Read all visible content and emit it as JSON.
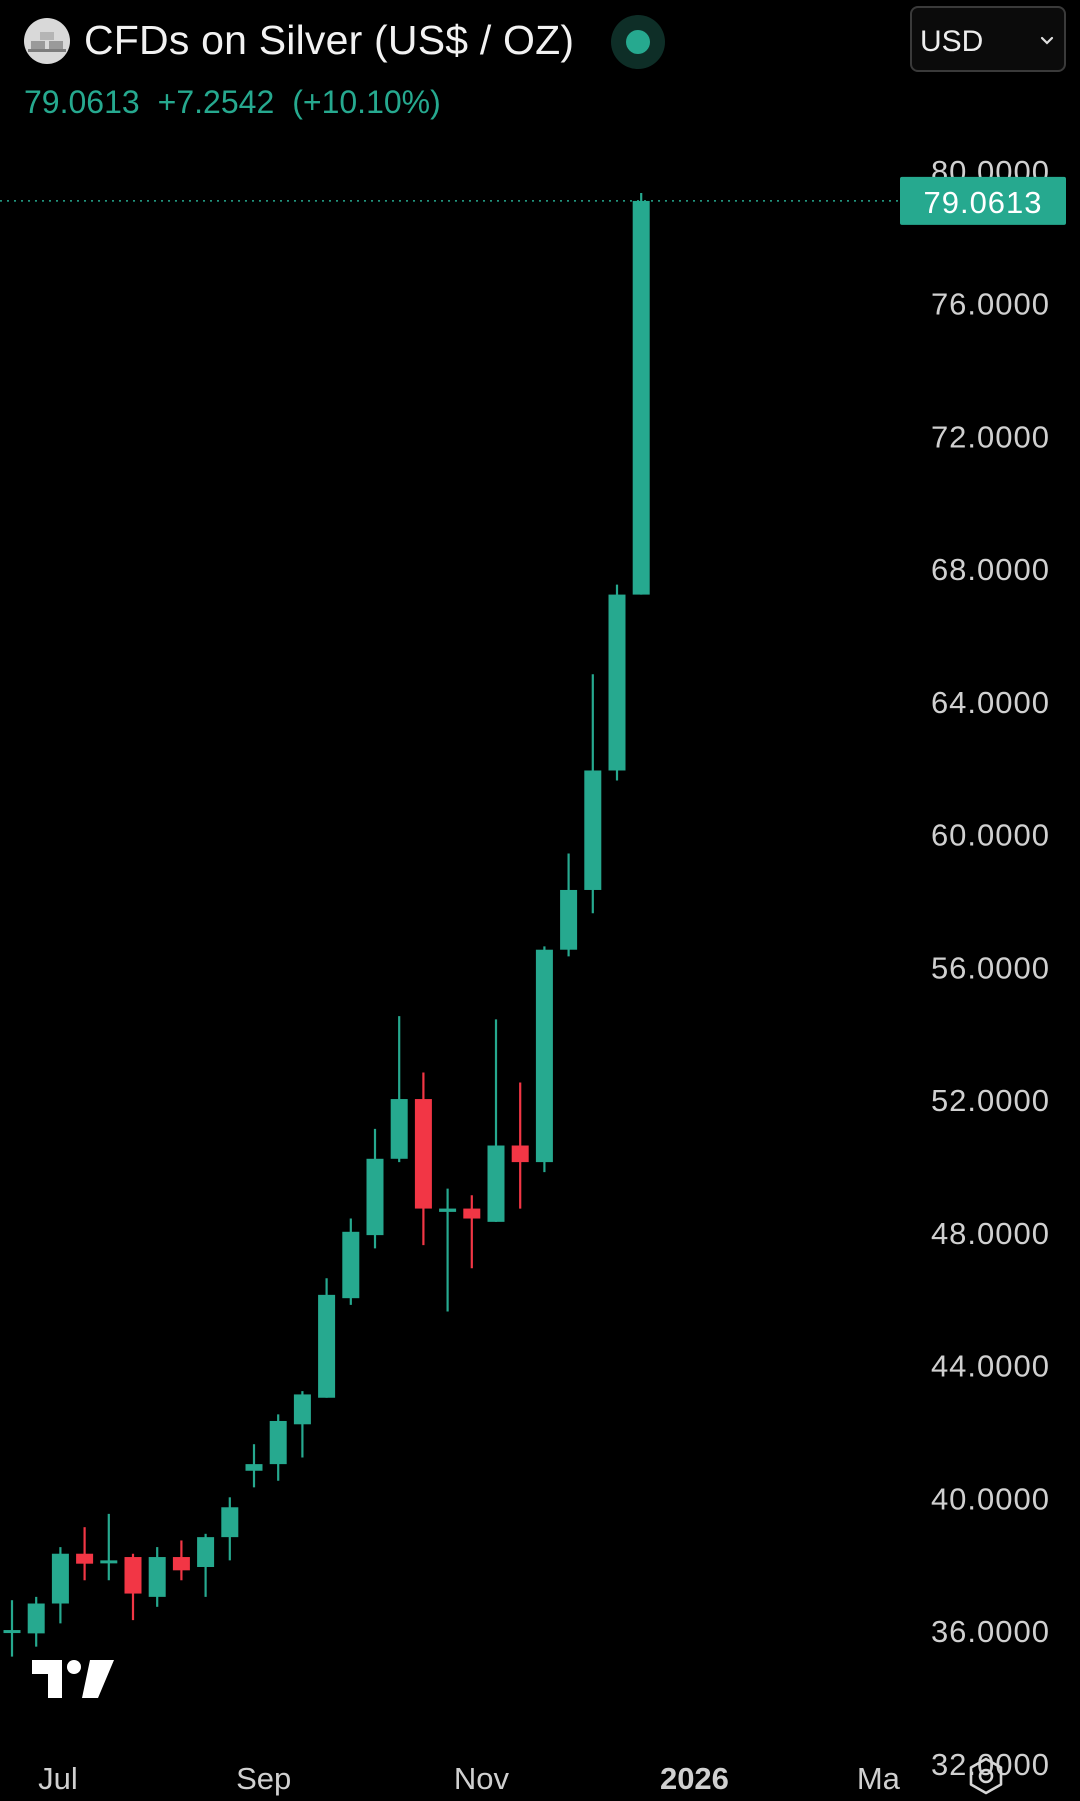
{
  "header": {
    "title": "CFDs on Silver (US$ / OZ)",
    "currency": "USD",
    "price": "79.0613",
    "change": "+7.2542",
    "change_pct": "(+10.10%)",
    "icons": {
      "symbol": "silver-bars-icon",
      "status": "live-status-dot-icon",
      "dropdown": "chevron-down-icon",
      "settings": "settings-icon",
      "logo": "tradingview-logo"
    }
  },
  "colors": {
    "up": "#26a98f",
    "down": "#f23645",
    "background": "#000000",
    "axis_text": "#d0d0d0"
  },
  "chart_data": {
    "type": "candlestick",
    "title": "CFDs on Silver (US$ / OZ)",
    "timeframe": "weekly",
    "ylim": [
      31,
      81.5
    ],
    "y_ticks": [
      32,
      36,
      40,
      44,
      48,
      52,
      56,
      60,
      64,
      68,
      72,
      76,
      80
    ],
    "y_tick_labels": [
      "32.0000",
      "36.0000",
      "40.0000",
      "44.0000",
      "48.0000",
      "52.0000",
      "56.0000",
      "60.0000",
      "64.0000",
      "68.0000",
      "72.0000",
      "76.0000",
      "80.0000"
    ],
    "x_labels": [
      {
        "label": "Jul",
        "index": 1.9
      },
      {
        "label": "Sep",
        "index": 10.4
      },
      {
        "label": "Nov",
        "index": 19.4
      },
      {
        "label": "2026",
        "index": 28.2,
        "bold": true
      },
      {
        "label": "Ma",
        "index": 35.8
      }
    ],
    "last_price": 79.0613,
    "last_price_label": "79.0613",
    "candles": [
      {
        "o": 36.0,
        "h": 36.9,
        "l": 35.2,
        "c": 36.0
      },
      {
        "o": 35.9,
        "h": 37.0,
        "l": 35.5,
        "c": 36.8
      },
      {
        "o": 36.8,
        "h": 38.5,
        "l": 36.2,
        "c": 38.3
      },
      {
        "o": 38.3,
        "h": 39.1,
        "l": 37.5,
        "c": 38.0
      },
      {
        "o": 38.1,
        "h": 39.5,
        "l": 37.5,
        "c": 38.1
      },
      {
        "o": 38.2,
        "h": 38.3,
        "l": 36.3,
        "c": 37.1
      },
      {
        "o": 37.0,
        "h": 38.5,
        "l": 36.7,
        "c": 38.2
      },
      {
        "o": 38.2,
        "h": 38.7,
        "l": 37.5,
        "c": 37.8
      },
      {
        "o": 37.9,
        "h": 38.9,
        "l": 37.0,
        "c": 38.8
      },
      {
        "o": 38.8,
        "h": 40.0,
        "l": 38.1,
        "c": 39.7
      },
      {
        "o": 40.8,
        "h": 41.6,
        "l": 40.3,
        "c": 41.0
      },
      {
        "o": 41.0,
        "h": 42.5,
        "l": 40.5,
        "c": 42.3
      },
      {
        "o": 42.2,
        "h": 43.2,
        "l": 41.2,
        "c": 43.1
      },
      {
        "o": 43.0,
        "h": 46.6,
        "l": 43.0,
        "c": 46.1
      },
      {
        "o": 46.0,
        "h": 48.4,
        "l": 45.8,
        "c": 48.0
      },
      {
        "o": 47.9,
        "h": 51.1,
        "l": 47.5,
        "c": 50.2
      },
      {
        "o": 50.2,
        "h": 54.5,
        "l": 50.1,
        "c": 52.0
      },
      {
        "o": 52.0,
        "h": 52.8,
        "l": 47.6,
        "c": 48.7
      },
      {
        "o": 48.6,
        "h": 49.3,
        "l": 45.6,
        "c": 48.7
      },
      {
        "o": 48.7,
        "h": 49.1,
        "l": 46.9,
        "c": 48.4
      },
      {
        "o": 48.3,
        "h": 54.4,
        "l": 48.3,
        "c": 50.6
      },
      {
        "o": 50.6,
        "h": 52.5,
        "l": 48.7,
        "c": 50.1
      },
      {
        "o": 50.1,
        "h": 56.6,
        "l": 49.8,
        "c": 56.5
      },
      {
        "o": 56.5,
        "h": 59.4,
        "l": 56.3,
        "c": 58.3
      },
      {
        "o": 58.3,
        "h": 64.8,
        "l": 57.6,
        "c": 61.9
      },
      {
        "o": 61.9,
        "h": 67.5,
        "l": 61.6,
        "c": 67.2
      },
      {
        "o": 67.2,
        "h": 79.3,
        "l": 67.2,
        "c": 79.0613
      }
    ]
  }
}
